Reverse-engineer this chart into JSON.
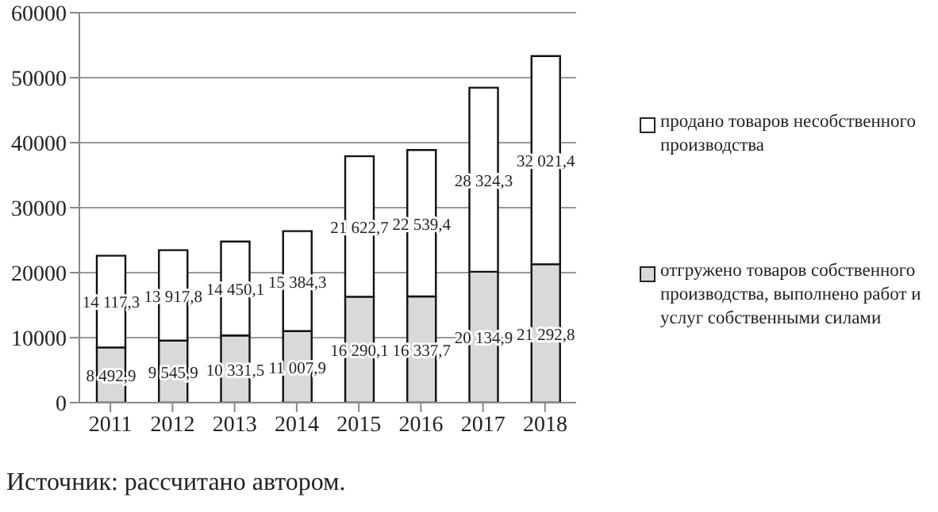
{
  "chart_data": {
    "type": "bar",
    "stacked": true,
    "categories": [
      "2011",
      "2012",
      "2013",
      "2014",
      "2015",
      "2016",
      "2017",
      "2018"
    ],
    "series": [
      {
        "name": "отгружено товаров собственного производства, выполнено работ и услуг собственными силами",
        "color": "#d9d9d9",
        "values": [
          8492.9,
          9545.9,
          10331.5,
          11007.9,
          16290.1,
          16337.7,
          20134.9,
          21292.8
        ],
        "value_labels": [
          "8 492,9",
          "9 545,9",
          "10 331,5",
          "11 007,9",
          "16 290,1",
          "16 337,7",
          "20 134,9",
          "21 292,8"
        ]
      },
      {
        "name": "продано товаров несобственного производства",
        "color": "#ffffff",
        "values": [
          14117.3,
          13917.8,
          14450.1,
          15384.3,
          21622.7,
          22539.4,
          28324.3,
          32021.4
        ],
        "value_labels": [
          "14 117,3",
          "13 917,8",
          "14 450,1",
          "15 384,3",
          "21 622,7",
          "22 539,4",
          "28 324,3",
          "32 021,4"
        ]
      }
    ],
    "ylim": [
      0,
      60000
    ],
    "yticks": [
      0,
      10000,
      20000,
      30000,
      40000,
      50000,
      60000
    ],
    "grid": "y",
    "legend": "right",
    "annotations": [
      "Источник: рассчитано автором."
    ]
  }
}
